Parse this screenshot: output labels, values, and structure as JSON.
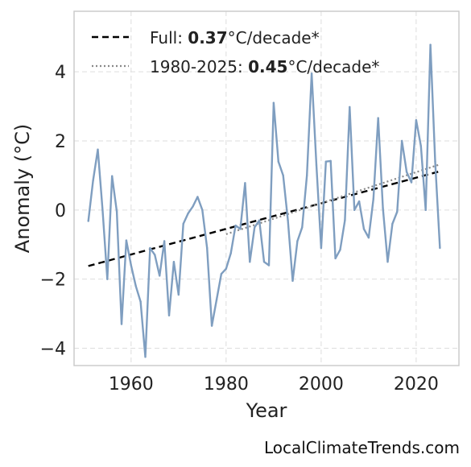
{
  "chart_data": {
    "type": "line",
    "title": "",
    "xlabel": "Year",
    "ylabel": "Anomaly (°C)",
    "xlim": [
      1948,
      2029
    ],
    "ylim": [
      -4.5,
      5.75
    ],
    "x_ticks": [
      1960,
      1980,
      2000,
      2020
    ],
    "y_ticks": [
      -4,
      -2,
      0,
      2,
      4
    ],
    "y_tick_labels": [
      "−4",
      "−2",
      "0",
      "2",
      "4"
    ],
    "grid": true,
    "legend_position": "top-left",
    "colors": {
      "series": "#7f9ec0",
      "trend_full": "#000000",
      "trend_recent": "#888888"
    },
    "series": [
      {
        "x": [
          1951,
          1952,
          1953,
          1954,
          1955,
          1956,
          1957,
          1958,
          1959,
          1960,
          1961,
          1962,
          1963,
          1964,
          1965,
          1966,
          1967,
          1968,
          1969,
          1970,
          1971,
          1972,
          1973,
          1974,
          1975,
          1976,
          1977,
          1978,
          1979,
          1980,
          1981,
          1982,
          1983,
          1984,
          1985,
          1986,
          1987,
          1988,
          1989,
          1990,
          1991,
          1992,
          1993,
          1994,
          1995,
          1996,
          1997,
          1998,
          1999,
          2000,
          2001,
          2002,
          2003,
          2004,
          2005,
          2006,
          2007,
          2008,
          2009,
          2010,
          2011,
          2012,
          2013,
          2014,
          2015,
          2016,
          2017,
          2018,
          2019,
          2020,
          2021,
          2022,
          2023,
          2024,
          2025
        ],
        "values": [
          -0.32,
          0.85,
          1.75,
          0.0,
          -2.0,
          0.98,
          -0.05,
          -3.3,
          -0.88,
          -1.6,
          -2.2,
          -2.65,
          -4.25,
          -1.1,
          -1.3,
          -1.9,
          -0.9,
          -3.05,
          -1.5,
          -2.45,
          -0.4,
          -0.1,
          0.1,
          0.38,
          0.0,
          -1.1,
          -3.35,
          -2.6,
          -1.85,
          -1.7,
          -1.25,
          -0.45,
          -0.55,
          0.78,
          -1.5,
          -0.5,
          -0.3,
          -1.5,
          -1.6,
          3.1,
          1.4,
          1.0,
          -0.3,
          -2.05,
          -0.9,
          -0.5,
          1.0,
          3.95,
          1.3,
          -1.1,
          1.4,
          1.42,
          -1.4,
          -1.15,
          -0.3,
          2.98,
          0.0,
          0.25,
          -0.55,
          -0.8,
          0.32,
          2.66,
          0.05,
          -1.5,
          -0.4,
          -0.05,
          2.0,
          1.1,
          0.8,
          2.6,
          1.85,
          0.0,
          4.78,
          1.4,
          -1.1
        ]
      }
    ],
    "trends": [
      {
        "label_prefix": "Full: ",
        "rate": "0.37",
        "label_suffix": "°C/decade*",
        "x": [
          1951,
          2025
        ],
        "y": [
          -1.62,
          1.12
        ],
        "style": "dashed"
      },
      {
        "label_prefix": "1980-2025: ",
        "rate": "0.45",
        "label_suffix": "°C/decade*",
        "x": [
          1980,
          2025
        ],
        "y": [
          -0.7,
          1.32
        ],
        "style": "dotted"
      }
    ]
  },
  "footer": {
    "credit": "LocalClimateTrends.com"
  }
}
